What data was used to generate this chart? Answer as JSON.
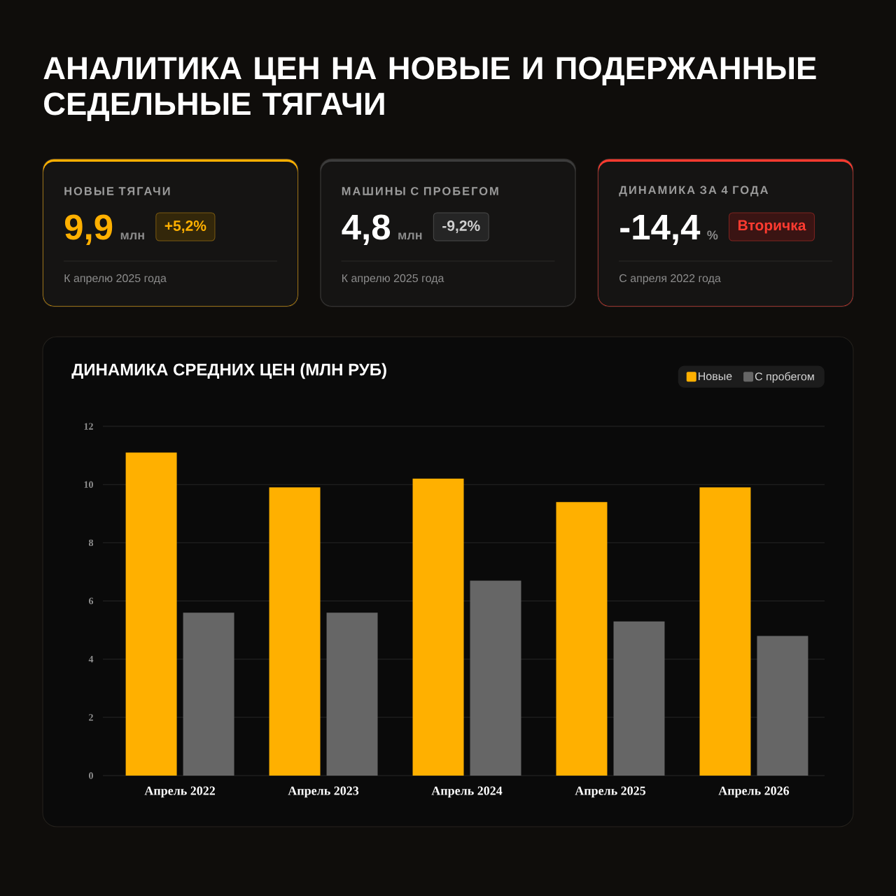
{
  "chart_data": [
    {
      "type": "other",
      "title": "АНАЛИТИКА ЦЕН НА НОВЫЕ И ПОДЕРЖАННЫЕ СЕДЕЛЬНЫЕ ТЯГАЧИ",
      "annotations": [
        "НОВЫЕ ТЯГАЧИ",
        "9,9",
        "млн",
        "+5,2%",
        "К апрелю 2025 года",
        "МАШИНЫ С ПРОБЕГОМ",
        "4,8",
        "млн",
        "-9,2%",
        "К апрелю 2025 года",
        "ДИНАМИКА ЗА 4 ГОДА",
        "-14,4",
        "%",
        "Вторичка",
        "С апреля 2022 года"
      ]
    },
    {
      "type": "bar",
      "title": "ДИНАМИКА СРЕДНИХ ЦЕН (МЛН РУБ)",
      "categories": [
        "Апрель 2022",
        "Апрель 2023",
        "Апрель 2024",
        "Апрель 2025",
        "Апрель 2026"
      ],
      "series": [
        {
          "name": "Новые",
          "color": "#ffb000",
          "values": [
            11.1,
            9.9,
            10.2,
            9.4,
            9.9
          ]
        },
        {
          "name": "С пробегом",
          "color": "#666666",
          "values": [
            5.6,
            5.6,
            6.7,
            5.3,
            4.8
          ]
        }
      ],
      "ylim": [
        0,
        12
      ],
      "yticks": [
        0,
        2,
        4,
        6,
        8,
        10,
        12
      ],
      "grid": "y",
      "legend": "top right"
    }
  ]
}
